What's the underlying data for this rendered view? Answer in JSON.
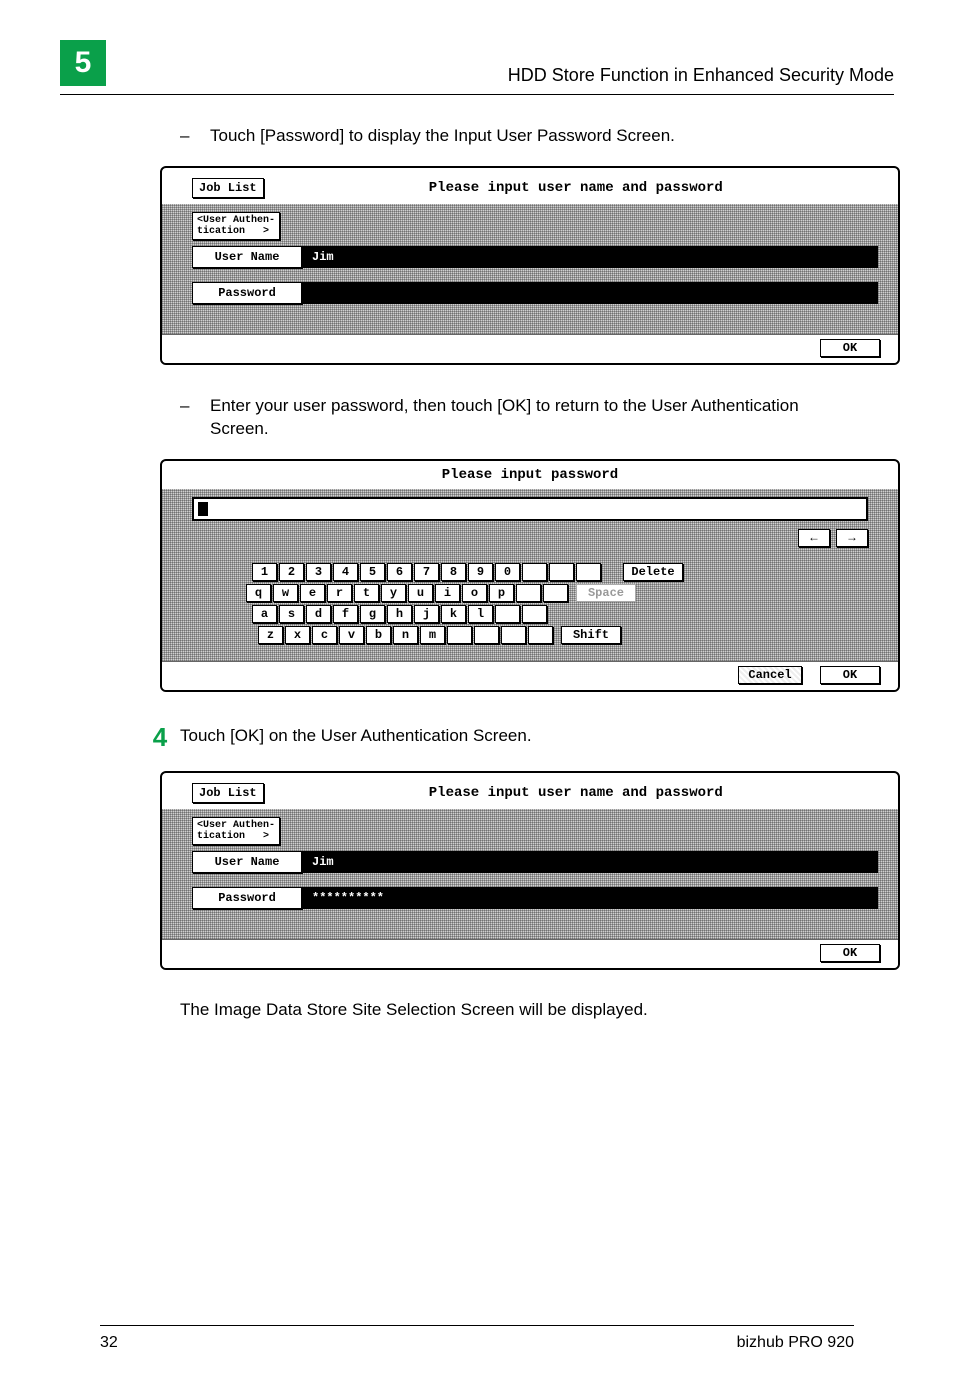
{
  "header": {
    "chapter_number": "5",
    "title": "HDD Store Function in Enhanced Security Mode"
  },
  "bullet1": "Touch [Password] to display the Input User Password Screen.",
  "panel1": {
    "title": "Please input user name and password",
    "job_list": "Job List",
    "tab": "<User Authen-\ntication   >",
    "user_name_label": "User Name",
    "user_name_value": "Jim",
    "password_label": "Password",
    "password_value": "",
    "ok": "OK"
  },
  "bullet2": "Enter your user password, then touch [OK] to return to the User Authentication Screen.",
  "panel2": {
    "title": "Please input password",
    "keys_row1": [
      "1",
      "2",
      "3",
      "4",
      "5",
      "6",
      "7",
      "8",
      "9",
      "0"
    ],
    "keys_row2": [
      "q",
      "w",
      "e",
      "r",
      "t",
      "y",
      "u",
      "i",
      "o",
      "p"
    ],
    "keys_row3": [
      "a",
      "s",
      "d",
      "f",
      "g",
      "h",
      "j",
      "k",
      "l"
    ],
    "keys_row4": [
      "z",
      "x",
      "c",
      "v",
      "b",
      "n",
      "m"
    ],
    "delete": "Delete",
    "space": "Space",
    "shift": "Shift",
    "arrow_left": "←",
    "arrow_right": "→",
    "cancel": "Cancel",
    "ok": "OK"
  },
  "step4": {
    "number": "4",
    "text": "Touch [OK] on the User Authentication Screen."
  },
  "panel3": {
    "title": "Please input user name and password",
    "job_list": "Job List",
    "tab": "<User Authen-\ntication   >",
    "user_name_label": "User Name",
    "user_name_value": "Jim",
    "password_label": "Password",
    "password_value": "**********",
    "ok": "OK"
  },
  "after": "The Image Data Store Site Selection Screen will be displayed.",
  "footer": {
    "page": "32",
    "product": "bizhub PRO 920"
  },
  "colors": {
    "accent": "#0aa04a",
    "text": "#000000",
    "bg": "#ffffff"
  }
}
